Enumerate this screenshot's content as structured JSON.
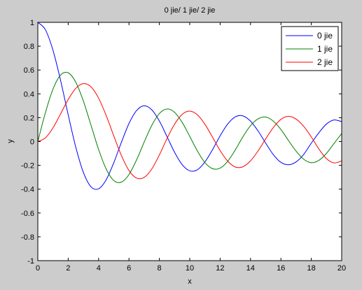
{
  "chart_data": {
    "type": "line",
    "title": "0 jie/ 1 jie/ 2 jie",
    "xlabel": "x",
    "ylabel": "y",
    "xlim": [
      0,
      20
    ],
    "ylim": [
      -1,
      1
    ],
    "xticks": [
      0,
      2,
      4,
      6,
      8,
      10,
      12,
      14,
      16,
      18,
      20
    ],
    "yticks": [
      -1,
      -0.8,
      -0.6,
      -0.4,
      -0.2,
      0,
      0.2,
      0.4,
      0.6,
      0.8,
      1
    ],
    "xtick_labels": [
      "0",
      "2",
      "4",
      "6",
      "8",
      "10",
      "12",
      "14",
      "16",
      "18",
      "20"
    ],
    "ytick_labels": [
      "-1",
      "-0.8",
      "-0.6",
      "-0.4",
      "-0.2",
      "0",
      "0.2",
      "0.4",
      "0.6",
      "0.8",
      "1"
    ],
    "grid": false,
    "legend_position": "top-right",
    "x": [
      0,
      0.5,
      1,
      1.5,
      2,
      2.5,
      3,
      3.5,
      4,
      4.5,
      5,
      5.5,
      6,
      6.5,
      7,
      7.5,
      8,
      8.5,
      9,
      9.5,
      10,
      10.5,
      11,
      11.5,
      12,
      12.5,
      13,
      13.5,
      14,
      14.5,
      15,
      15.5,
      16,
      16.5,
      17,
      17.5,
      18,
      18.5,
      19,
      19.5,
      20
    ],
    "series": [
      {
        "name": "0 jie",
        "color": "#0000ff",
        "values": [
          1,
          0.938,
          0.765,
          0.512,
          0.224,
          -0.048,
          -0.26,
          -0.38,
          -0.397,
          -0.321,
          -0.178,
          -0.007,
          0.151,
          0.26,
          0.3,
          0.266,
          0.172,
          0.042,
          -0.09,
          -0.194,
          -0.246,
          -0.237,
          -0.171,
          -0.068,
          0.048,
          0.147,
          0.207,
          0.215,
          0.171,
          0.088,
          -0.014,
          -0.11,
          -0.175,
          -0.195,
          -0.171,
          -0.108,
          -0.014,
          0.074,
          0.147,
          0.181,
          0.167
        ]
      },
      {
        "name": "1 jie",
        "color": "#008000",
        "values": [
          0,
          0.242,
          0.44,
          0.558,
          0.577,
          0.497,
          0.339,
          0.137,
          -0.066,
          -0.231,
          -0.328,
          -0.341,
          -0.277,
          -0.154,
          -0.005,
          0.135,
          0.235,
          0.273,
          0.245,
          0.161,
          0.043,
          -0.079,
          -0.177,
          -0.228,
          -0.223,
          -0.166,
          -0.07,
          0.04,
          0.133,
          0.19,
          0.205,
          0.171,
          0.101,
          0.008,
          -0.081,
          -0.149,
          -0.178,
          -0.158,
          -0.099,
          -0.016,
          0.067
        ]
      },
      {
        "name": "2 jie",
        "color": "#ff0000",
        "values": [
          0,
          0.031,
          0.115,
          0.232,
          0.353,
          0.446,
          0.486,
          0.459,
          0.364,
          0.218,
          0.047,
          -0.117,
          -0.243,
          -0.307,
          -0.301,
          -0.231,
          -0.113,
          0.024,
          0.145,
          0.228,
          0.255,
          0.224,
          0.144,
          0.036,
          -0.076,
          -0.165,
          -0.214,
          -0.212,
          -0.162,
          -0.078,
          0.023,
          0.117,
          0.186,
          0.211,
          0.188,
          0.127,
          0.038,
          -0.063,
          -0.144,
          -0.18,
          -0.163
        ]
      }
    ]
  }
}
